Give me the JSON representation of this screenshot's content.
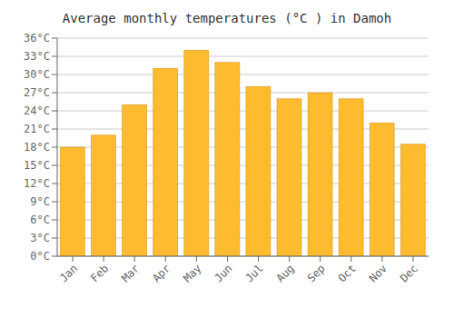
{
  "chart_data": {
    "type": "bar",
    "title": "Average monthly temperatures (°C ) in Damoh",
    "categories": [
      "Jan",
      "Feb",
      "Mar",
      "Apr",
      "May",
      "Jun",
      "Jul",
      "Aug",
      "Sep",
      "Oct",
      "Nov",
      "Dec"
    ],
    "values": [
      18,
      20,
      25,
      31,
      34,
      32,
      28,
      26,
      27,
      26,
      22,
      18.5
    ],
    "color": "#FFBB30",
    "ylim": [
      0,
      36
    ],
    "yticks": [
      {
        "value": 0,
        "label": "0°C"
      },
      {
        "value": 3,
        "label": "3°C"
      },
      {
        "value": 6,
        "label": "6°C"
      },
      {
        "value": 9,
        "label": "9°C"
      },
      {
        "value": 12,
        "label": "12°C"
      },
      {
        "value": 15,
        "label": "15°C"
      },
      {
        "value": 18,
        "label": "18°C"
      },
      {
        "value": 21,
        "label": "21°C"
      },
      {
        "value": 24,
        "label": "24°C"
      },
      {
        "value": 27,
        "label": "27°C"
      },
      {
        "value": 30,
        "label": "30°C"
      },
      {
        "value": 33,
        "label": "33°C"
      },
      {
        "value": 36,
        "label": "36°C"
      }
    ],
    "grid": true
  }
}
